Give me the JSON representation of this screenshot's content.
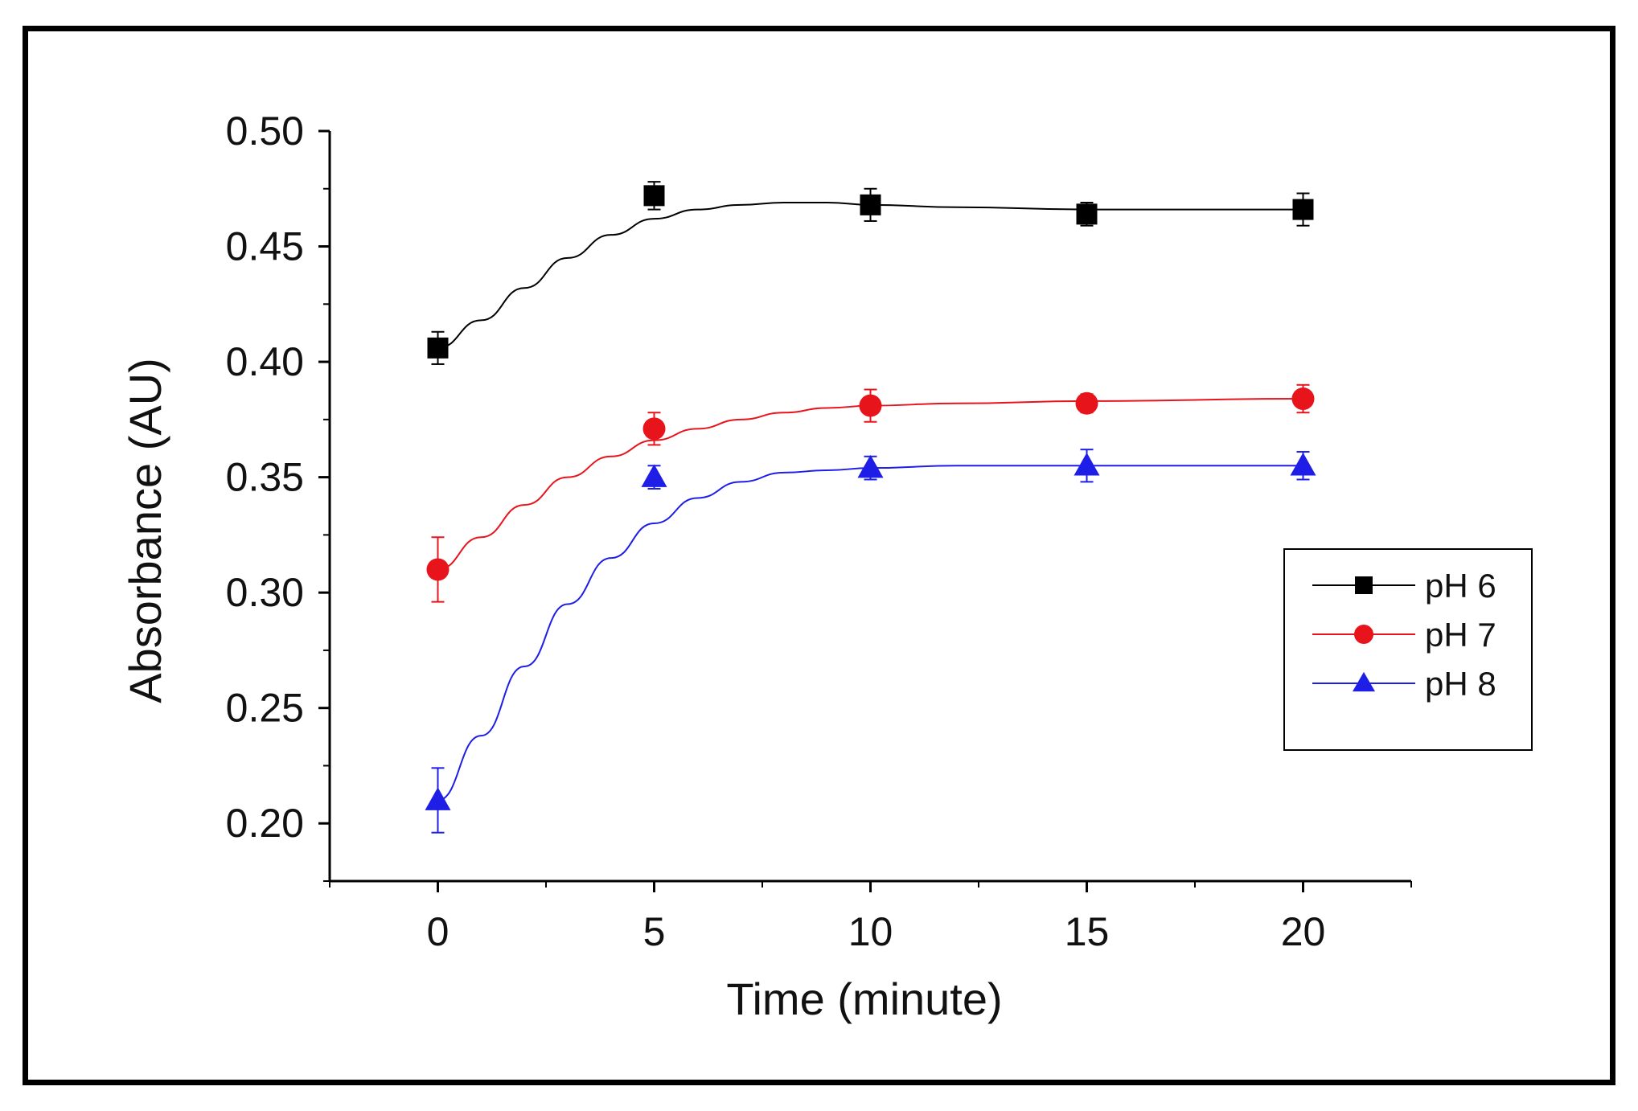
{
  "chart_data": {
    "type": "line",
    "title": "",
    "xlabel": "Time (minute)",
    "ylabel": "Absorbance (AU)",
    "xlim": [
      -2.5,
      22.5
    ],
    "ylim": [
      0.175,
      0.5
    ],
    "xticks": [
      0,
      5,
      10,
      15,
      20
    ],
    "xtick_labels": [
      "0",
      "5",
      "10",
      "15",
      "20"
    ],
    "yticks": [
      0.2,
      0.25,
      0.3,
      0.35,
      0.4,
      0.45,
      0.5
    ],
    "ytick_labels": [
      "0.20",
      "0.25",
      "0.30",
      "0.35",
      "0.40",
      "0.45",
      "0.50"
    ],
    "grid": false,
    "legend_position": "right",
    "x": [
      0,
      5,
      10,
      15,
      20
    ],
    "series": [
      {
        "name": "pH 6",
        "color": "#000000",
        "marker": "square",
        "values": [
          0.406,
          0.472,
          0.468,
          0.464,
          0.466
        ],
        "errors": [
          0.007,
          0.006,
          0.007,
          0.005,
          0.007
        ],
        "fit": [
          [
            0,
            0.406
          ],
          [
            1,
            0.418
          ],
          [
            2,
            0.432
          ],
          [
            3,
            0.445
          ],
          [
            4,
            0.455
          ],
          [
            5,
            0.462
          ],
          [
            6,
            0.466
          ],
          [
            7,
            0.468
          ],
          [
            8,
            0.469
          ],
          [
            9,
            0.469
          ],
          [
            10,
            0.468
          ],
          [
            12,
            0.467
          ],
          [
            15,
            0.466
          ],
          [
            20,
            0.466
          ]
        ]
      },
      {
        "name": "pH 7",
        "color": "#e8141c",
        "marker": "circle",
        "values": [
          0.31,
          0.371,
          0.381,
          0.382,
          0.384
        ],
        "errors": [
          0.014,
          0.007,
          0.007,
          0.004,
          0.006
        ],
        "fit": [
          [
            0,
            0.31
          ],
          [
            1,
            0.324
          ],
          [
            2,
            0.338
          ],
          [
            3,
            0.35
          ],
          [
            4,
            0.359
          ],
          [
            5,
            0.366
          ],
          [
            6,
            0.371
          ],
          [
            7,
            0.375
          ],
          [
            8,
            0.378
          ],
          [
            9,
            0.38
          ],
          [
            10,
            0.381
          ],
          [
            12,
            0.382
          ],
          [
            15,
            0.383
          ],
          [
            20,
            0.384
          ]
        ]
      },
      {
        "name": "pH 8",
        "color": "#1e1ee6",
        "marker": "triangle",
        "values": [
          0.21,
          0.35,
          0.354,
          0.355,
          0.355
        ],
        "errors": [
          0.014,
          0.005,
          0.005,
          0.007,
          0.006
        ],
        "fit": [
          [
            0,
            0.21
          ],
          [
            1,
            0.238
          ],
          [
            2,
            0.268
          ],
          [
            3,
            0.295
          ],
          [
            4,
            0.315
          ],
          [
            5,
            0.33
          ],
          [
            6,
            0.341
          ],
          [
            7,
            0.348
          ],
          [
            8,
            0.352
          ],
          [
            9,
            0.353
          ],
          [
            10,
            0.354
          ],
          [
            12,
            0.355
          ],
          [
            15,
            0.355
          ],
          [
            20,
            0.355
          ]
        ]
      }
    ]
  }
}
